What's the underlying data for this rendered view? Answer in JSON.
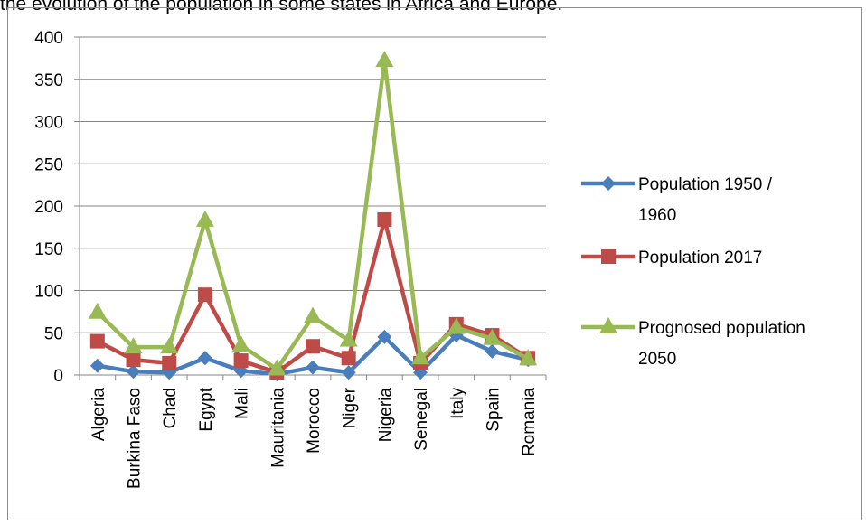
{
  "caption": "the evolution of the population in some states in Africa and Europe.",
  "chart_data": {
    "type": "line",
    "title": "",
    "xlabel": "",
    "ylabel": "",
    "ylim": [
      0,
      400
    ],
    "yticks": [
      0,
      50,
      100,
      150,
      200,
      250,
      300,
      350,
      400
    ],
    "grid": true,
    "legend_position": "right",
    "categories": [
      "Algeria",
      "Burkina Faso",
      "Chad",
      "Egypt",
      "Mali",
      "Mauritania",
      "Morocco",
      "Niger",
      "Nigeria",
      "Senegal",
      "Italy",
      "Spain",
      "Romania"
    ],
    "series": [
      {
        "name": "Population 1950 / 1960",
        "legend_lines": [
          "Population 1950 /",
          "1960"
        ],
        "color": "#4a7ebb",
        "marker": "diamond",
        "values": [
          11,
          4,
          3,
          20,
          5,
          1,
          9,
          3,
          45,
          3,
          47,
          28,
          18
        ]
      },
      {
        "name": "Population 2017",
        "legend_lines": [
          "Population 2017"
        ],
        "color": "#be4b48",
        "marker": "square",
        "values": [
          40,
          18,
          14,
          95,
          17,
          3,
          34,
          20,
          184,
          14,
          60,
          47,
          20
        ]
      },
      {
        "name": "Prognosed population 2050",
        "legend_lines": [
          "Prognosed population",
          "2050"
        ],
        "color": "#98b954",
        "marker": "triangle",
        "values": [
          74,
          33,
          33,
          183,
          35,
          7,
          69,
          41,
          372,
          20,
          56,
          43,
          19
        ]
      }
    ]
  }
}
